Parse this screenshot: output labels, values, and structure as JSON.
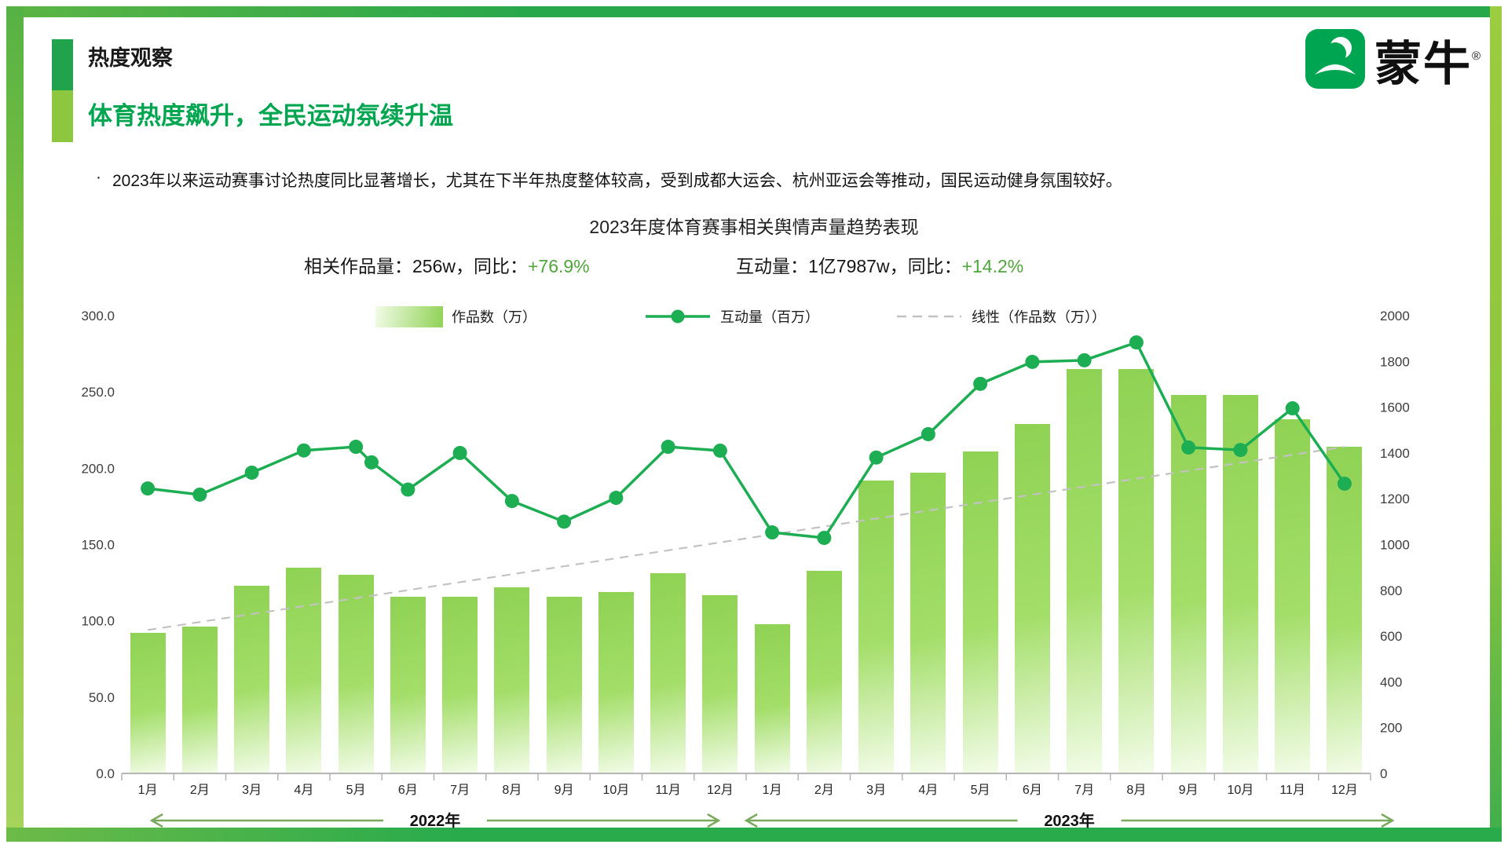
{
  "page": {
    "section_label": "热度观察",
    "headline": "体育热度飙升，全民运动氛续升温",
    "bullet_marker": "·",
    "bullet": "2023年以来运动赛事讨论热度同比显著增长，尤其在下半年热度整体较高，受到成都大运会、杭州亚运会等推动，国民运动健身氛围较好。"
  },
  "logo": {
    "brand": "蒙牛",
    "reg_mark": "®"
  },
  "stats": [
    {
      "label": "相关作品量：256w，同比：",
      "value": "+76.9%"
    },
    {
      "label": "互动量：1亿7987w，同比：",
      "value": "+14.2%"
    }
  ],
  "colors": {
    "accent_dark": "#21A24C",
    "accent_light": "#8DC63F",
    "headline_green": "#00A54F",
    "stat_green": "#4EA53C",
    "line_green": "#1DAD52",
    "bar_top": "#8FD254",
    "bar_mid": "#A3DE69",
    "bar_fade": "#F3FCE8",
    "trend_gray": "#C2C2C2",
    "axis_gray": "#B5B5B5",
    "arrow_green": "#7AA95E",
    "logo_green": "#00A551"
  },
  "chart_data": {
    "type": "bar+line combo",
    "title": "2023年度体育赛事相关舆情声量趋势表现",
    "categories": [
      "1月",
      "2月",
      "3月",
      "4月",
      "5月",
      "6月",
      "7月",
      "8月",
      "9月",
      "10月",
      "11月",
      "12月",
      "1月",
      "2月",
      "3月",
      "4月",
      "5月",
      "6月",
      "7月",
      "8月",
      "9月",
      "10月",
      "11月",
      "12月"
    ],
    "left_axis": {
      "min": 0,
      "max": 300,
      "step": 50,
      "decimals": 1
    },
    "right_axis": {
      "min": 0,
      "max": 2000,
      "step": 200,
      "decimals": 0
    },
    "gridlines": false,
    "legend_position": "top",
    "series": [
      {
        "name": "作品数（万）",
        "type": "bar",
        "axis": "left",
        "values": [
          92,
          96,
          123,
          135,
          130,
          116,
          116,
          122,
          116,
          119,
          131,
          117,
          98,
          133,
          192,
          197,
          211,
          229,
          265,
          265,
          248,
          248,
          232,
          214
        ]
      },
      {
        "name": "互动量（百万）",
        "type": "line",
        "axis": "right",
        "points": [
          [
            0,
            1245
          ],
          [
            1,
            1218
          ],
          [
            2,
            1314
          ],
          [
            3,
            1411
          ],
          [
            4,
            1427
          ],
          [
            4.3,
            1359
          ],
          [
            5,
            1240
          ],
          [
            6,
            1400
          ],
          [
            7,
            1190
          ],
          [
            8,
            1100
          ],
          [
            9,
            1204
          ],
          [
            10,
            1427
          ],
          [
            11,
            1410
          ],
          [
            12,
            1053
          ],
          [
            13,
            1029
          ],
          [
            14,
            1380
          ],
          [
            15,
            1482
          ],
          [
            16,
            1702
          ],
          [
            17,
            1798
          ],
          [
            18,
            1805
          ],
          [
            19,
            1883
          ],
          [
            20,
            1424
          ],
          [
            21,
            1413
          ],
          [
            22,
            1595
          ],
          [
            23,
            1266
          ]
        ]
      },
      {
        "name": "线性（作品数（万））",
        "type": "trendline",
        "axis": "left",
        "start": 94,
        "end": 214
      }
    ],
    "year_groups": [
      {
        "label": "2022年"
      },
      {
        "label": "2023年"
      }
    ]
  }
}
